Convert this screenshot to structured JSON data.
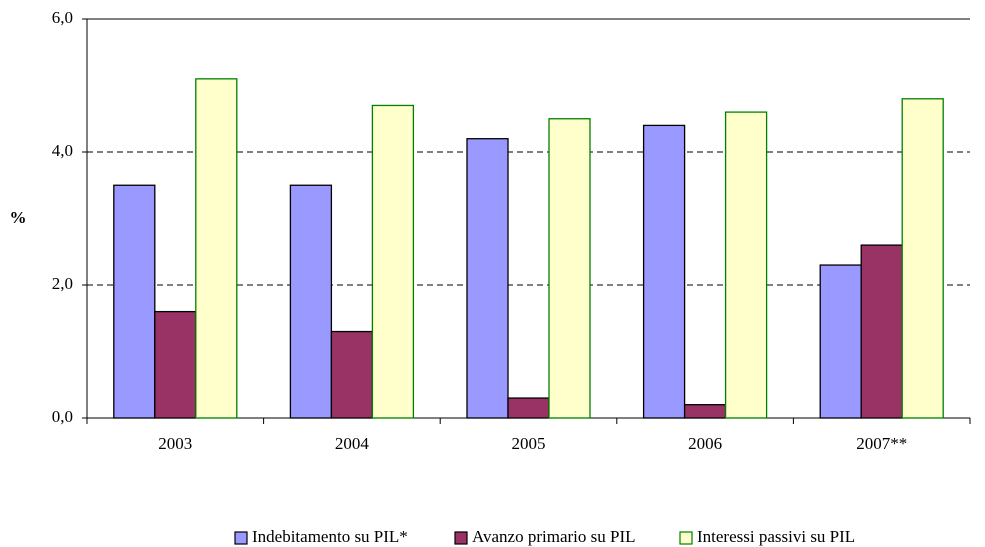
{
  "chart_data": {
    "type": "bar",
    "y_label": "%",
    "categories": [
      "2003",
      "2004",
      "2005",
      "2006",
      "2007**"
    ],
    "series": [
      {
        "name": "Indebitamento su PIL*",
        "color": "#9999ff",
        "border": "#000000",
        "values": [
          3.5,
          3.5,
          4.2,
          4.4,
          2.3
        ]
      },
      {
        "name": "Avanzo primario su PIL",
        "color": "#993366",
        "border": "#000000",
        "values": [
          1.6,
          1.3,
          0.3,
          0.2,
          2.6
        ]
      },
      {
        "name": "Interessi passivi su PIL",
        "color": "#ffffcc",
        "border": "#008000",
        "values": [
          5.1,
          4.7,
          4.5,
          4.6,
          4.8
        ]
      }
    ],
    "ylim": [
      0,
      6
    ],
    "yticks": [
      {
        "value": 0,
        "label": "0,0"
      },
      {
        "value": 2,
        "label": "2,0"
      },
      {
        "value": 4,
        "label": "4,0"
      },
      {
        "value": 6,
        "label": "6,0"
      }
    ],
    "grid": true,
    "legend": "bottom"
  }
}
